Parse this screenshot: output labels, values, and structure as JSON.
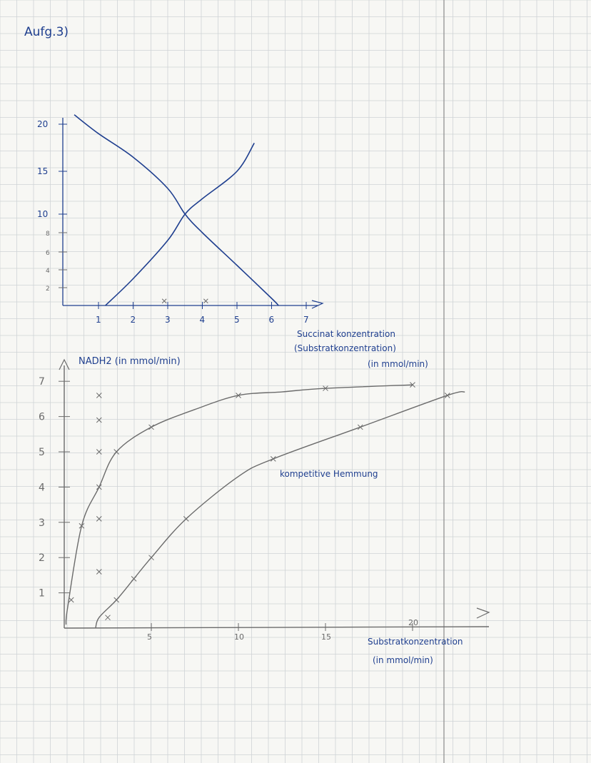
{
  "header": {
    "title": "Aufg.3)"
  },
  "colors": {
    "ink_blue": "#1f3f8f",
    "pencil": "#6b6b6b",
    "grid": "#cfd3d6",
    "paper": "#f7f7f4"
  },
  "chart_data": [
    {
      "type": "line",
      "title": "",
      "xlabel": "Succinat konzentration (Substratkonzentration) (in mmol/min)",
      "xlabel_lines": [
        "Succinat konzentration",
        "(Substratkonzentration)",
        "(in mmol/min)"
      ],
      "ylabel": "",
      "x_ticks": [
        "1",
        "2",
        "3",
        "4",
        "5",
        "6",
        "7"
      ],
      "y_ticks": [
        "2",
        "4",
        "6",
        "8",
        "10",
        "15",
        "20"
      ],
      "xlim": [
        0,
        7
      ],
      "ylim": [
        0,
        20
      ],
      "series": [
        {
          "x": [
            0.3,
            1,
            2,
            3,
            3.5,
            4,
            5,
            6,
            6.2
          ],
          "y": [
            21,
            19,
            16.5,
            13,
            10,
            8,
            4.5,
            0.8,
            0
          ]
        },
        {
          "x": [
            1.2,
            2,
            3,
            3.5,
            4,
            5,
            5.5
          ],
          "y": [
            0,
            3,
            7.2,
            10,
            11.8,
            15,
            18
          ]
        }
      ],
      "markers": [
        {
          "x": 2.9,
          "y": 0.5
        },
        {
          "x": 4.1,
          "y": 0.5
        }
      ]
    },
    {
      "type": "line",
      "title": "",
      "ylabel": "NADH2 (in mmol/min)",
      "xlabel": "Substratkonzentration (in mmol/min)",
      "xlabel_lines": [
        "Substratkonzentration",
        "(in mmol/min)"
      ],
      "x_ticks": [
        "5",
        "10",
        "15",
        "20"
      ],
      "y_ticks": [
        "1",
        "2",
        "3",
        "4",
        "5",
        "6",
        "7"
      ],
      "xlim": [
        0,
        24
      ],
      "ylim": [
        0,
        7
      ],
      "annotations": [
        "kompetitive Hemmung"
      ],
      "series": [
        {
          "x": [
            0.2,
            1,
            2,
            3,
            5,
            7.5,
            10,
            12.5,
            15,
            20
          ],
          "y": [
            0.6,
            2.9,
            4.0,
            5.0,
            5.7,
            6.2,
            6.6,
            6.7,
            6.8,
            6.9
          ]
        },
        {
          "x": [
            2,
            3,
            4,
            5,
            7,
            10,
            12,
            17,
            22,
            23
          ],
          "y": [
            0.3,
            0.8,
            1.4,
            2.0,
            3.1,
            4.3,
            4.8,
            5.7,
            6.6,
            6.7
          ]
        }
      ],
      "markers": [
        {
          "x": 0.4,
          "y": 0.8
        },
        {
          "x": 1.0,
          "y": 2.9
        },
        {
          "x": 2.0,
          "y": 6.6
        },
        {
          "x": 2.0,
          "y": 5.9
        },
        {
          "x": 2.0,
          "y": 5.0
        },
        {
          "x": 2.0,
          "y": 4.0
        },
        {
          "x": 2.0,
          "y": 3.1
        },
        {
          "x": 2.0,
          "y": 1.6
        },
        {
          "x": 3.0,
          "y": 5.0
        },
        {
          "x": 5.0,
          "y": 5.7
        },
        {
          "x": 10.0,
          "y": 6.6
        },
        {
          "x": 15.0,
          "y": 6.8
        },
        {
          "x": 20.0,
          "y": 6.9
        },
        {
          "x": 2.5,
          "y": 0.3
        },
        {
          "x": 3.0,
          "y": 0.8
        },
        {
          "x": 4.0,
          "y": 1.4
        },
        {
          "x": 5.0,
          "y": 2.0
        },
        {
          "x": 7.0,
          "y": 3.1
        },
        {
          "x": 12.0,
          "y": 4.8
        },
        {
          "x": 17.0,
          "y": 5.7
        },
        {
          "x": 22.0,
          "y": 6.6
        }
      ]
    }
  ]
}
